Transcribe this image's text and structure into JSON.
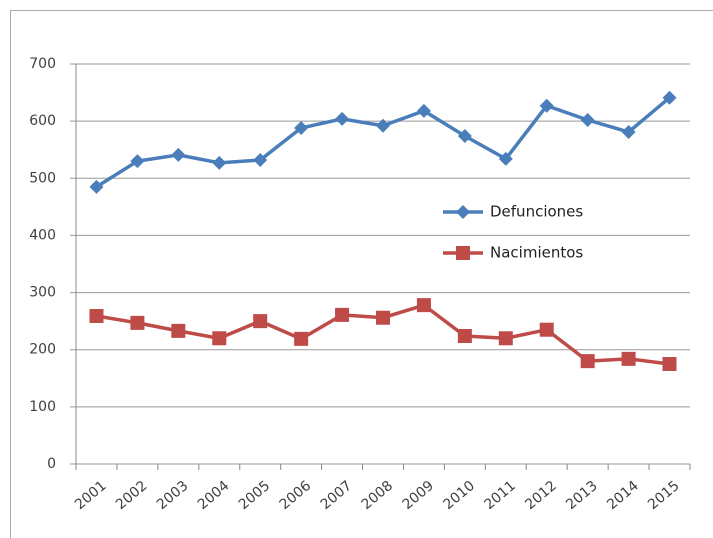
{
  "chart_data": {
    "type": "line",
    "categories": [
      "2001",
      "2002",
      "2003",
      "2004",
      "2005",
      "2006",
      "2007",
      "2008",
      "2009",
      "2010",
      "2011",
      "2012",
      "2013",
      "2014",
      "2015"
    ],
    "series": [
      {
        "name": "Defunciones",
        "color": "#4a7ebb",
        "marker": "diamond",
        "values": [
          485,
          530,
          541,
          527,
          532,
          588,
          604,
          592,
          618,
          574,
          534,
          627,
          602,
          581,
          641
        ]
      },
      {
        "name": "Nacimientos",
        "color": "#be4b48",
        "marker": "square",
        "values": [
          259,
          247,
          233,
          220,
          250,
          219,
          261,
          256,
          278,
          224,
          220,
          235,
          180,
          184,
          175
        ]
      }
    ],
    "ylim": [
      0,
      700
    ],
    "yticks": [
      0,
      100,
      200,
      300,
      400,
      500,
      600,
      700
    ],
    "grid": true,
    "legend": "right"
  }
}
